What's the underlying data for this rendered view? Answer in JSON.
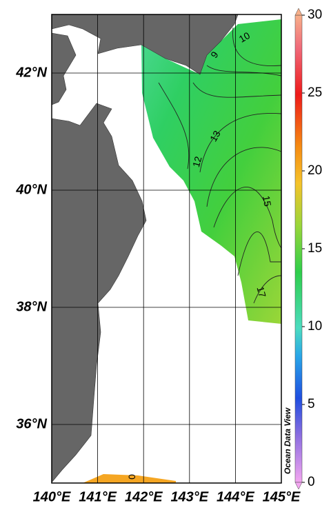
{
  "map": {
    "xlim": [
      140,
      145
    ],
    "ylim": [
      35,
      43
    ],
    "xticks": [
      {
        "value": 140,
        "label": "140°E"
      },
      {
        "value": 141,
        "label": "141°E"
      },
      {
        "value": 142,
        "label": "142°E"
      },
      {
        "value": 143,
        "label": "143°E"
      },
      {
        "value": 144,
        "label": "144°E"
      },
      {
        "value": 145,
        "label": "145°E"
      }
    ],
    "yticks": [
      {
        "value": 36,
        "label": "36°N"
      },
      {
        "value": 38,
        "label": "38°N"
      },
      {
        "value": 40,
        "label": "40°N"
      },
      {
        "value": 42,
        "label": "42°N"
      }
    ],
    "grid": true,
    "colorbar": {
      "lim": [
        0,
        30
      ],
      "ticks": [
        0,
        5,
        10,
        15,
        20,
        25,
        30
      ]
    },
    "contour_labels": [
      9,
      10,
      13,
      12,
      15,
      17,
      0
    ],
    "watermark": "Ocean Data View"
  }
}
